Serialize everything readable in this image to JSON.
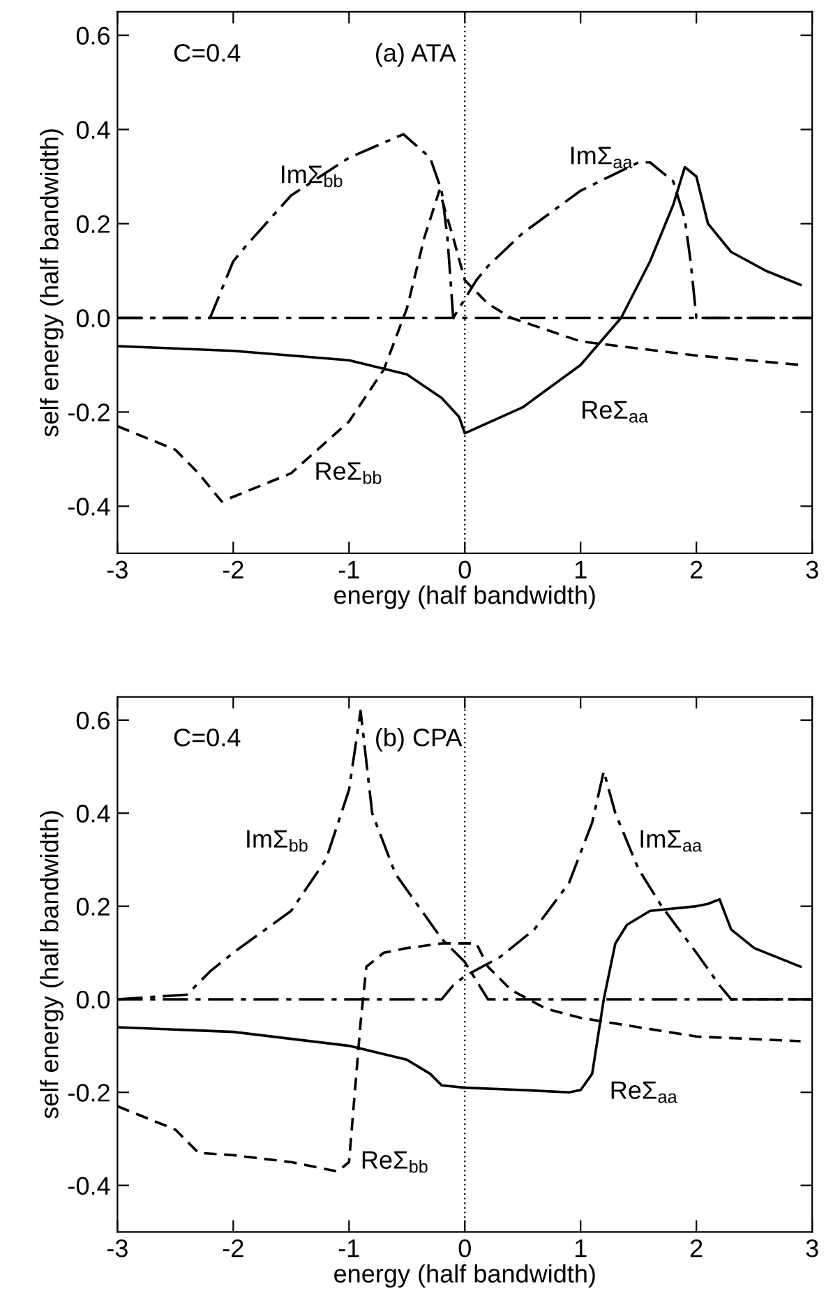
{
  "chart_data": [
    {
      "type": "line",
      "title": "(a) ATA",
      "xlabel": "energy (half bandwidth)",
      "ylabel": "self energy (half bandwidth)",
      "xlim": [
        -3,
        3
      ],
      "xticks": [
        -3,
        -2,
        -1,
        0,
        1,
        2,
        3
      ],
      "ylim": [
        -0.5,
        0.65
      ],
      "yticks": [
        -0.4,
        -0.2,
        {
          "value": 0,
          "label": "0.0"
        },
        0.2,
        0.4,
        0.6
      ],
      "grid": false,
      "legend": false,
      "marker": "none",
      "ref_lines": [
        {
          "axis": "x",
          "value": 0,
          "color": "#000000",
          "line_style": "dotted"
        }
      ],
      "annotations": [
        "C=0.4"
      ],
      "series": [
        {
          "name": "ImΣ$_{bb}$",
          "color": "#000000",
          "line_style": "dashdot",
          "x": [
            -3,
            -2.2,
            -2.0,
            -1.9,
            -1.5,
            -1.0,
            -0.53,
            -0.3,
            -0.2,
            -0.15,
            -0.1,
            3
          ],
          "values": [
            0,
            0,
            0.12,
            0.15,
            0.26,
            0.34,
            0.39,
            0.34,
            0.27,
            0.17,
            0,
            0
          ]
        },
        {
          "name": "ReΣ$_{bb}$",
          "color": "#000000",
          "line_style": "dashed",
          "x": [
            -3,
            -2.5,
            -2.3,
            -2.1,
            -1.5,
            -1.0,
            -0.7,
            -0.5,
            -0.35,
            -0.22,
            -0.1,
            0,
            0.2,
            0.4,
            1.0,
            2.0,
            2.9
          ],
          "values": [
            -0.23,
            -0.28,
            -0.33,
            -0.39,
            -0.33,
            -0.22,
            -0.11,
            0.02,
            0.17,
            0.27,
            0.17,
            0.08,
            0.03,
            0.0,
            -0.05,
            -0.08,
            -0.1
          ]
        },
        {
          "name": "ReΣ$_{aa}$",
          "color": "#000000",
          "line_style": "solid",
          "x": [
            -3,
            -2,
            -1,
            -0.5,
            -0.2,
            -0.05,
            0,
            0.5,
            1.0,
            1.35,
            1.6,
            1.8,
            1.9,
            2.0,
            2.1,
            2.3,
            2.6,
            2.9
          ],
          "values": [
            -0.06,
            -0.07,
            -0.09,
            -0.12,
            -0.17,
            -0.21,
            -0.245,
            -0.19,
            -0.1,
            0,
            0.12,
            0.24,
            0.32,
            0.3,
            0.2,
            0.14,
            0.1,
            0.07
          ]
        },
        {
          "name": "ImΣ$_{aa}$",
          "color": "#000000",
          "line_style": "dashdot",
          "x": [
            -3,
            -0.1,
            -0.05,
            0.1,
            0.2,
            0.5,
            1.0,
            1.5,
            1.6,
            1.8,
            1.9,
            1.95,
            2.0,
            3
          ],
          "values": [
            0,
            0,
            0.02,
            0.08,
            0.11,
            0.18,
            0.27,
            0.33,
            0.33,
            0.29,
            0.21,
            0.12,
            0,
            0
          ]
        }
      ]
    },
    {
      "type": "line",
      "title": "(b) CPA",
      "xlabel": "energy (half bandwidth)",
      "ylabel": "self energy (half bandwidth)",
      "xlim": [
        -3,
        3
      ],
      "xticks": [
        -3,
        -2,
        -1,
        0,
        1,
        2,
        3
      ],
      "ylim": [
        -0.5,
        0.65
      ],
      "yticks": [
        -0.4,
        -0.2,
        {
          "value": 0,
          "label": "0.0"
        },
        0.2,
        0.4,
        0.6
      ],
      "grid": false,
      "legend": false,
      "marker": "none",
      "ref_lines": [
        {
          "axis": "x",
          "value": 0,
          "color": "#000000",
          "line_style": "dotted"
        }
      ],
      "annotations": [
        "C=0.4"
      ],
      "series": [
        {
          "name": "ImΣ$_{bb}$",
          "color": "#000000",
          "line_style": "dashdot",
          "x": [
            -3,
            -2.4,
            -2.2,
            -2.0,
            -1.5,
            -1.2,
            -1.0,
            -0.9,
            -0.8,
            -0.6,
            -0.4,
            -0.2,
            0,
            0.1,
            0.2,
            3
          ],
          "values": [
            0,
            0.01,
            0.06,
            0.1,
            0.19,
            0.3,
            0.45,
            0.62,
            0.4,
            0.27,
            0.2,
            0.13,
            0.08,
            0.04,
            0,
            0
          ]
        },
        {
          "name": "ReΣ$_{bb}$",
          "color": "#000000",
          "line_style": "dashed",
          "x": [
            -3,
            -2.5,
            -2.3,
            -2.0,
            -1.5,
            -1.1,
            -1.0,
            -0.95,
            -0.9,
            -0.85,
            -0.7,
            -0.5,
            -0.2,
            0.1,
            0.2,
            0.4,
            0.7,
            1.0,
            1.5,
            2.0,
            2.9
          ],
          "values": [
            -0.23,
            -0.28,
            -0.33,
            -0.335,
            -0.35,
            -0.37,
            -0.35,
            -0.2,
            -0.05,
            0.07,
            0.1,
            0.11,
            0.12,
            0.12,
            0.07,
            0.02,
            -0.02,
            -0.04,
            -0.06,
            -0.08,
            -0.09
          ]
        },
        {
          "name": "ReΣ$_{aa}$",
          "color": "#000000",
          "line_style": "solid",
          "x": [
            -3,
            -2,
            -1,
            -0.5,
            -0.3,
            -0.2,
            0,
            0.5,
            0.9,
            1.0,
            1.1,
            1.2,
            1.3,
            1.4,
            1.6,
            2.0,
            2.1,
            2.2,
            2.3,
            2.5,
            2.9
          ],
          "values": [
            -0.06,
            -0.07,
            -0.1,
            -0.13,
            -0.16,
            -0.185,
            -0.19,
            -0.195,
            -0.2,
            -0.195,
            -0.16,
            0,
            0.12,
            0.16,
            0.19,
            0.2,
            0.205,
            0.215,
            0.15,
            0.11,
            0.07
          ]
        },
        {
          "name": "ImΣ$_{aa}$",
          "color": "#000000",
          "line_style": "dashdot",
          "x": [
            -3,
            -0.2,
            -0.1,
            0,
            0.3,
            0.6,
            0.9,
            1.1,
            1.2,
            1.3,
            1.5,
            1.7,
            2.0,
            2.2,
            2.3,
            3
          ],
          "values": [
            0,
            0,
            0.03,
            0.05,
            0.09,
            0.15,
            0.25,
            0.38,
            0.49,
            0.4,
            0.28,
            0.2,
            0.1,
            0.03,
            0,
            0
          ]
        }
      ]
    }
  ]
}
